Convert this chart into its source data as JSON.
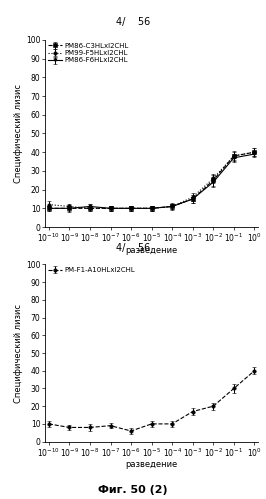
{
  "top_title": "4/    56",
  "bottom_title": "4/    56",
  "fig_caption": "Фиг. 50 (2)",
  "ylabel": "Специфический лизис",
  "xlabel": "разведение",
  "ylim": [
    0,
    100
  ],
  "yticks": [
    0,
    10,
    20,
    30,
    40,
    50,
    60,
    70,
    80,
    90,
    100
  ],
  "xlog_min": -10,
  "xlog_max": 0,
  "plot1_series": [
    {
      "label": "PM86-C3HLxI2CHL",
      "linestyle": "--",
      "marker": "s",
      "color": "#000000",
      "x": [
        -10,
        -9,
        -8,
        -7,
        -6,
        -5,
        -4,
        -3,
        -2,
        -1,
        0
      ],
      "y": [
        10,
        10,
        10,
        10,
        10,
        10,
        11,
        15,
        25,
        38,
        40
      ],
      "yerr": [
        1.5,
        1.5,
        1.5,
        1.5,
        1.5,
        1.5,
        1.5,
        2,
        3,
        2.5,
        2
      ]
    },
    {
      "label": "PM99-F5HLxI2CHL",
      "linestyle": ":",
      "marker": "o",
      "color": "#000000",
      "x": [
        -10,
        -9,
        -8,
        -7,
        -6,
        -5,
        -4,
        -3,
        -2,
        -1,
        0
      ],
      "y": [
        12,
        11,
        10,
        10,
        10,
        10,
        11,
        16,
        26,
        38,
        40
      ],
      "yerr": [
        2,
        1.5,
        1.5,
        1.5,
        1.5,
        1.5,
        1.5,
        2,
        2.5,
        2,
        2
      ]
    },
    {
      "label": "PM86-F6HLxI2CHL",
      "linestyle": "-",
      "marker": "v",
      "color": "#000000",
      "x": [
        -10,
        -9,
        -8,
        -7,
        -6,
        -5,
        -4,
        -3,
        -2,
        -1,
        0
      ],
      "y": [
        10,
        10,
        11,
        10,
        10,
        10,
        11,
        15,
        24,
        37,
        39
      ],
      "yerr": [
        1.5,
        2,
        1.5,
        1.5,
        1.5,
        1.5,
        2,
        2,
        2.5,
        2,
        1.5
      ]
    }
  ],
  "plot2_series": [
    {
      "label": "PM-F1-A10HLxI2CHL",
      "linestyle": "--",
      "marker": "o",
      "color": "#000000",
      "x": [
        -10,
        -9,
        -8,
        -7,
        -6,
        -5,
        -4,
        -3,
        -2,
        -1,
        0
      ],
      "y": [
        10,
        8,
        8,
        9,
        6,
        10,
        10,
        17,
        20,
        30,
        40
      ],
      "yerr": [
        1.5,
        1.5,
        2,
        1.5,
        1.5,
        1.5,
        1.5,
        2,
        2,
        2.5,
        2
      ]
    }
  ],
  "background_color": "#ffffff",
  "font_color": "#000000",
  "legend_fontsize": 5.0,
  "axis_fontsize": 6.0,
  "tick_fontsize": 5.5,
  "title_fontsize": 7.0,
  "caption_fontsize": 8.0
}
